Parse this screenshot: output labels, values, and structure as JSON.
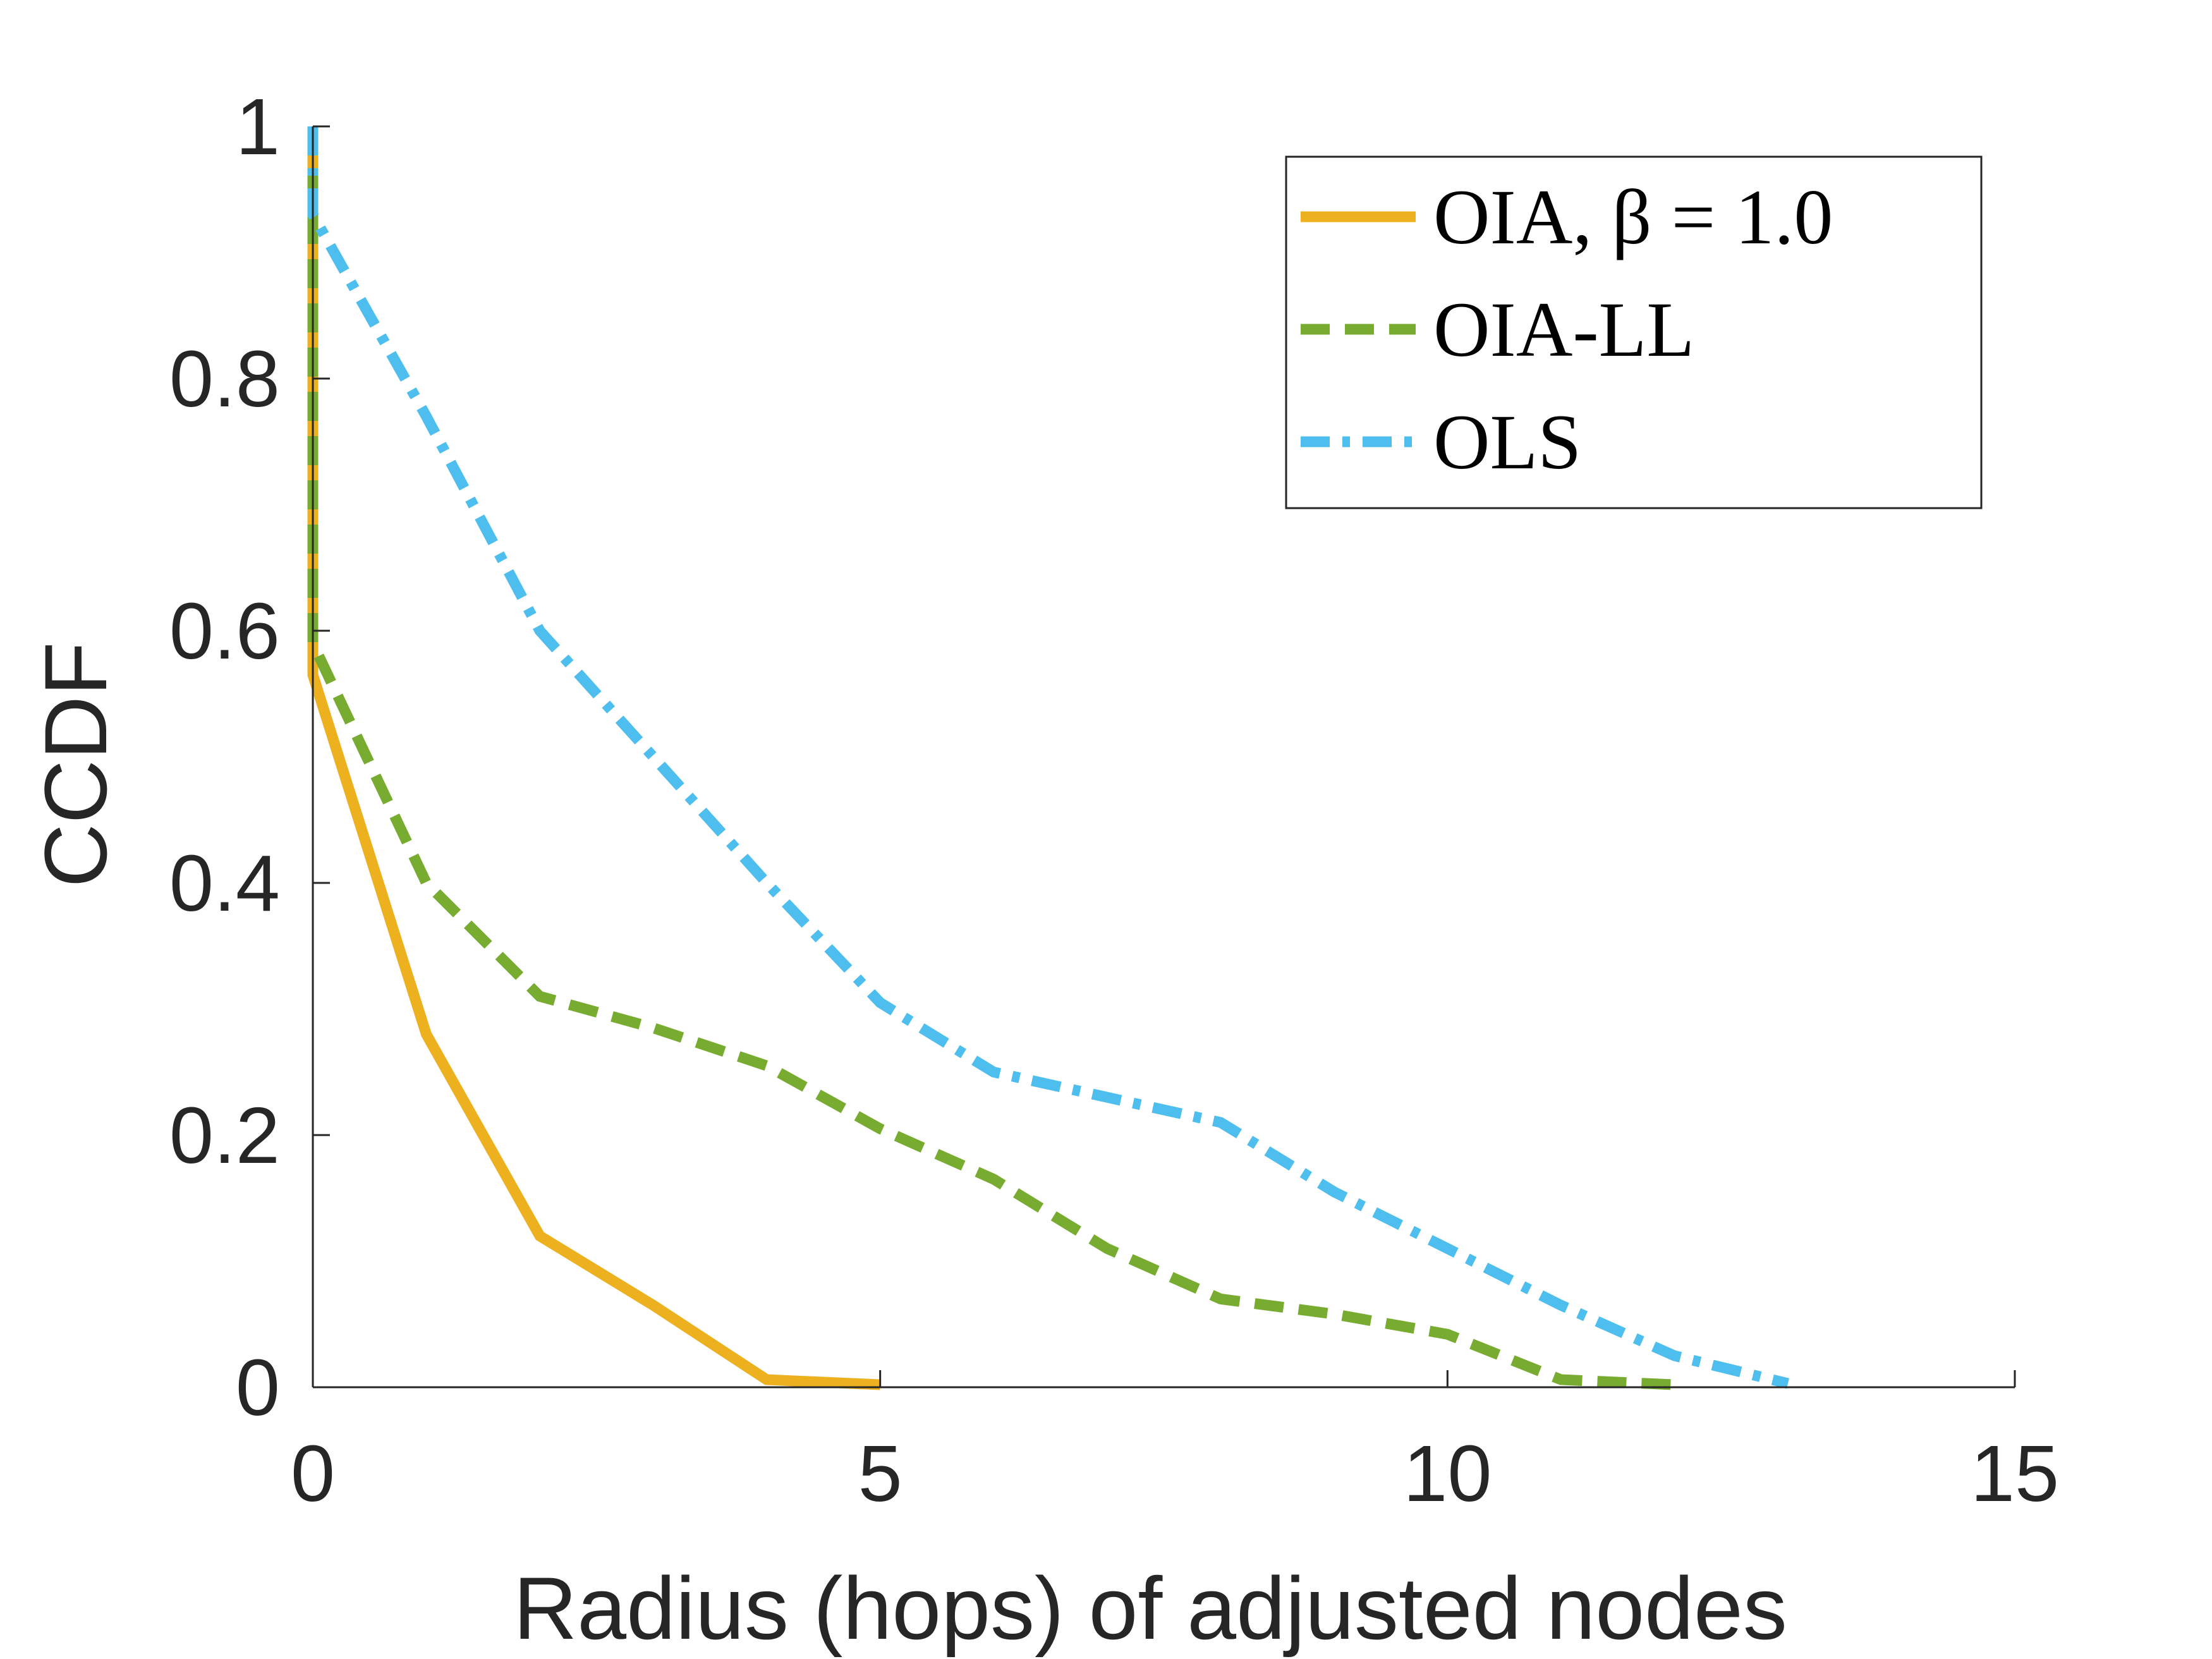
{
  "chart_data": {
    "type": "line",
    "title": "",
    "xlabel": "Radius (hops) of adjusted nodes",
    "ylabel": "CCDF",
    "xlim": [
      0,
      15
    ],
    "ylim": [
      0,
      1
    ],
    "xticks": [
      0,
      5,
      10,
      15
    ],
    "yticks": [
      0,
      0.2,
      0.4,
      0.6,
      0.8,
      1
    ],
    "xtick_labels": [
      "0",
      "5",
      "10",
      "15"
    ],
    "ytick_labels": [
      "0",
      "0.2",
      "0.4",
      "0.6",
      "0.8",
      "1"
    ],
    "grid": false,
    "legend_position": "top-right",
    "series": [
      {
        "name": "OIA, β = 1.0",
        "color": "#EDB120",
        "style": "solid",
        "x": [
          0,
          0,
          1,
          2,
          3,
          4,
          5
        ],
        "y": [
          1,
          0.565,
          0.28,
          0.12,
          0.065,
          0.006,
          0.002
        ]
      },
      {
        "name": "OIA-LL",
        "color": "#77AC30",
        "style": "dashed",
        "x": [
          0,
          0,
          1,
          2,
          3,
          4,
          5,
          6,
          7,
          8,
          9,
          10,
          11,
          12
        ],
        "y": [
          1,
          0.59,
          0.4,
          0.31,
          0.285,
          0.255,
          0.205,
          0.165,
          0.11,
          0.07,
          0.058,
          0.042,
          0.006,
          0.002
        ]
      },
      {
        "name": "OLS",
        "color": "#4DBEEE",
        "style": "dashdot",
        "x": [
          0,
          0,
          1,
          2,
          3,
          4,
          5,
          6,
          7,
          8,
          9,
          10,
          11,
          12,
          13
        ],
        "y": [
          1,
          0.93,
          0.77,
          0.6,
          0.5,
          0.4,
          0.305,
          0.25,
          0.23,
          0.21,
          0.155,
          0.11,
          0.065,
          0.025,
          0.003
        ]
      }
    ]
  }
}
